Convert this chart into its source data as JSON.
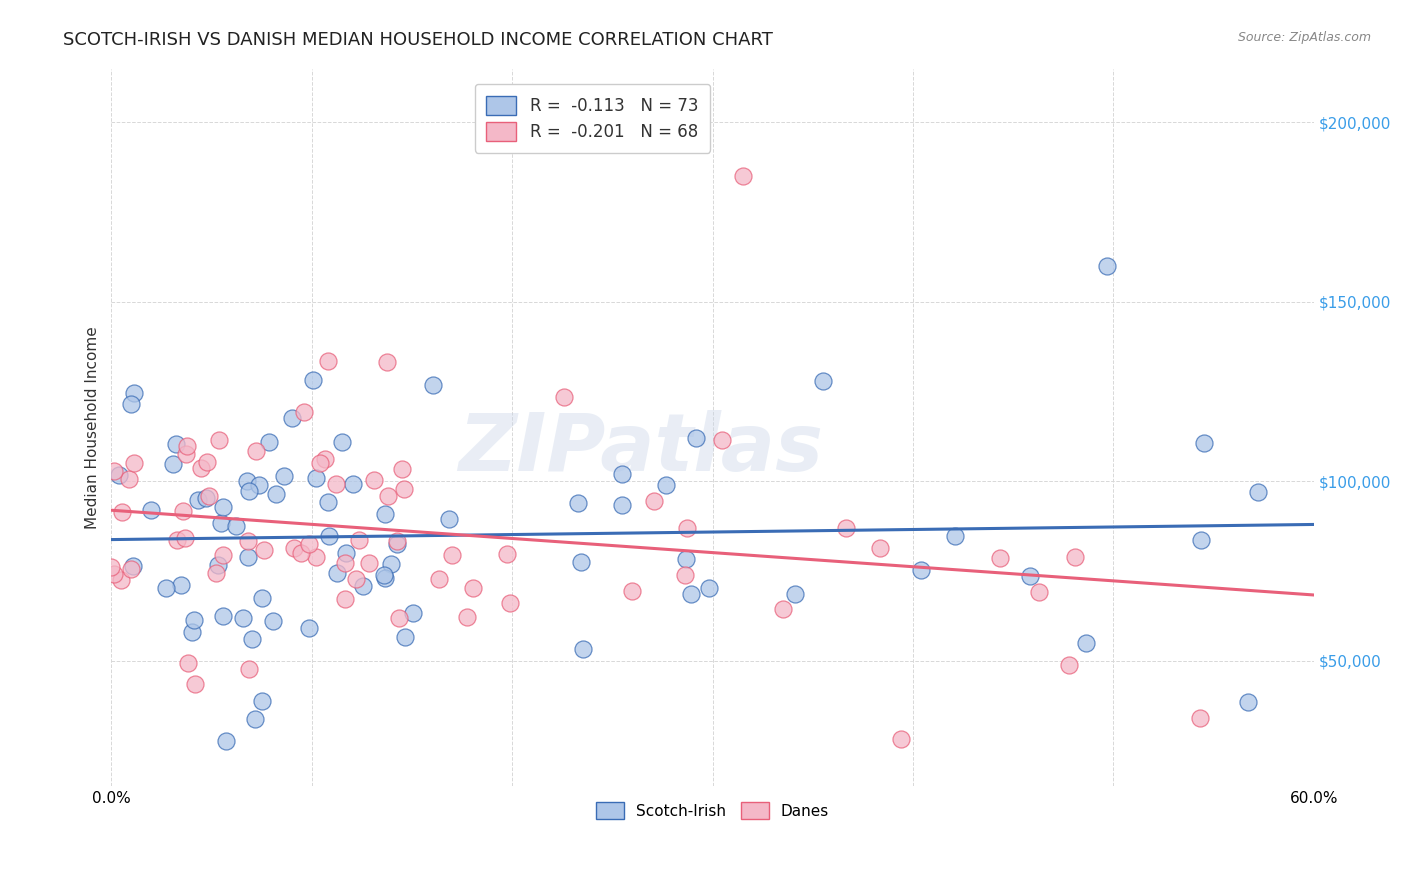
{
  "title": "SCOTCH-IRISH VS DANISH MEDIAN HOUSEHOLD INCOME CORRELATION CHART",
  "source": "Source: ZipAtlas.com",
  "ylabel": "Median Household Income",
  "watermark": "ZIPatlas",
  "legend_entries": [
    {
      "label": "R =  -0.113   N = 73",
      "color": "#aec6e8"
    },
    {
      "label": "R =  -0.201   N = 68",
      "color": "#f4b8c8"
    }
  ],
  "legend_bottom": [
    "Scotch-Irish",
    "Danes"
  ],
  "y_ticks": [
    50000,
    100000,
    150000,
    200000
  ],
  "y_tick_labels": [
    "$50,000",
    "$100,000",
    "$150,000",
    "$200,000"
  ],
  "ytick_color": "#3a9de8",
  "xlim": [
    0.0,
    0.6
  ],
  "ylim": [
    15000,
    215000
  ],
  "scotch_irish_color": "#aec6e8",
  "danes_color": "#f4b8c8",
  "scotch_irish_line_color": "#3a6cb5",
  "danes_line_color": "#e8607a",
  "background_color": "#ffffff",
  "grid_color": "#d8d8d8",
  "title_fontsize": 13,
  "axis_label_fontsize": 11,
  "tick_fontsize": 11,
  "si_line_y0": 88000,
  "si_line_y1": 76000,
  "d_line_y0": 93000,
  "d_line_y1": 72000
}
